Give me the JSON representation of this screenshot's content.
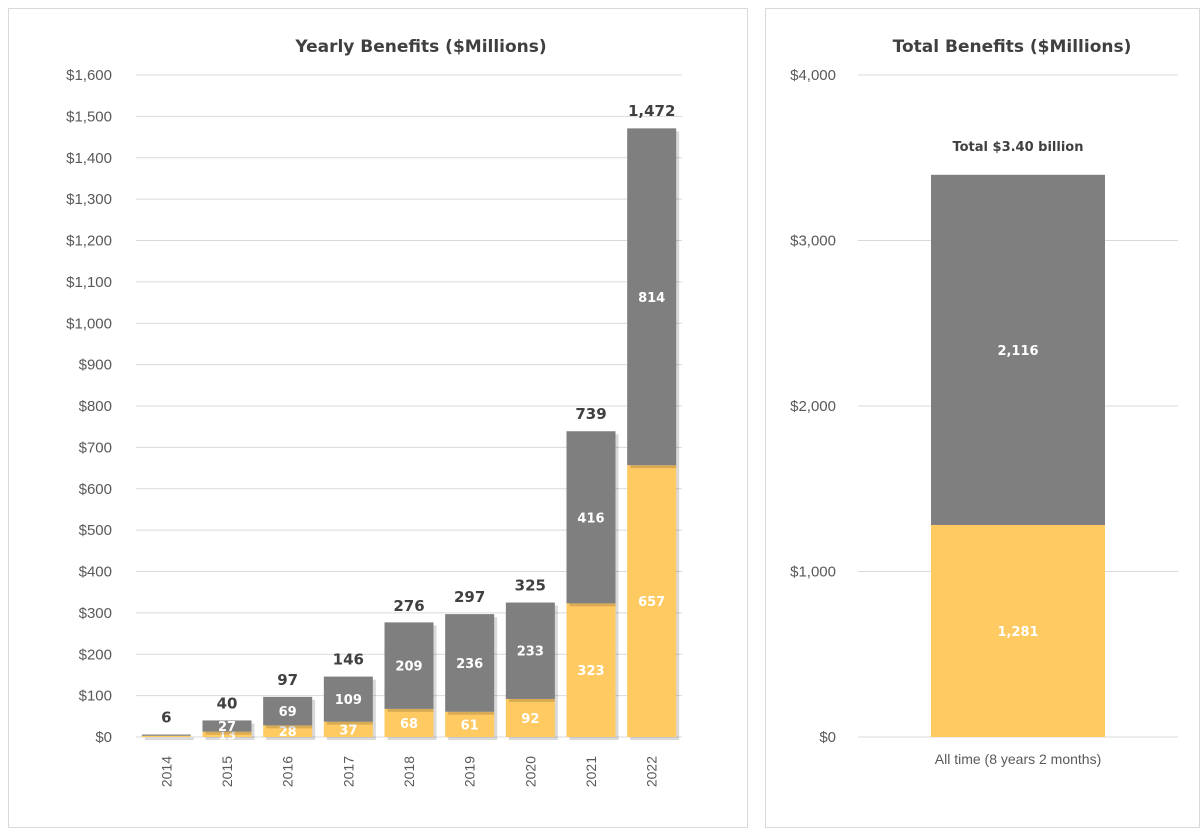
{
  "colors": {
    "gray": "#7f7f7f",
    "yellow": "#ffca62",
    "grid": "#d9d9d9",
    "text": "#595959"
  },
  "chart_data": [
    {
      "type": "bar",
      "stacked": true,
      "title": "Yearly Benefits ($Millions)",
      "xlabel": "",
      "ylabel": "",
      "categories": [
        "2014",
        "2015",
        "2016",
        "2017",
        "2018",
        "2019",
        "2020",
        "2021",
        "2022"
      ],
      "series": [
        {
          "color": "#ffca62",
          "values": [
            3,
            13,
            28,
            37,
            68,
            61,
            92,
            323,
            657
          ],
          "labels": [
            "",
            "13",
            "28",
            "37",
            "68",
            "61",
            "92",
            "323",
            "657"
          ]
        },
        {
          "color": "#7f7f7f",
          "values": [
            3,
            27,
            69,
            109,
            209,
            236,
            233,
            416,
            814
          ],
          "labels": [
            "",
            "27",
            "69",
            "109",
            "209",
            "236",
            "233",
            "416",
            "814"
          ]
        }
      ],
      "totals": [
        "6",
        "40",
        "97",
        "146",
        "276",
        "297",
        "325",
        "739",
        "1,472"
      ],
      "total_values": [
        6,
        40,
        97,
        146,
        276,
        297,
        325,
        739,
        1472
      ],
      "ylim": [
        0,
        1600
      ],
      "yticks": [
        0,
        100,
        200,
        300,
        400,
        500,
        600,
        700,
        800,
        900,
        1000,
        1100,
        1200,
        1300,
        1400,
        1500,
        1600
      ],
      "ytick_labels": [
        "$0",
        "$100",
        "$200",
        "$300",
        "$400",
        "$500",
        "$600",
        "$700",
        "$800",
        "$900",
        "$1,000",
        "$1,100",
        "$1,200",
        "$1,300",
        "$1,400",
        "$1,500",
        "$1,600"
      ],
      "grid": true,
      "legend": "none"
    },
    {
      "type": "bar",
      "stacked": true,
      "title": "Total Benefits ($Millions)",
      "xlabel": "",
      "ylabel": "",
      "categories": [
        "All time (8 years 2 months)"
      ],
      "series": [
        {
          "color": "#ffca62",
          "values": [
            1281
          ],
          "labels": [
            "1,281"
          ]
        },
        {
          "color": "#7f7f7f",
          "values": [
            2116
          ],
          "labels": [
            "2,116"
          ]
        }
      ],
      "annotation": "Total $3.40 billion",
      "ylim": [
        0,
        4000
      ],
      "yticks": [
        0,
        1000,
        2000,
        3000,
        4000
      ],
      "ytick_labels": [
        "$0",
        "$1,000",
        "$2,000",
        "$3,000",
        "$4,000"
      ],
      "grid": true,
      "legend": "none"
    }
  ]
}
